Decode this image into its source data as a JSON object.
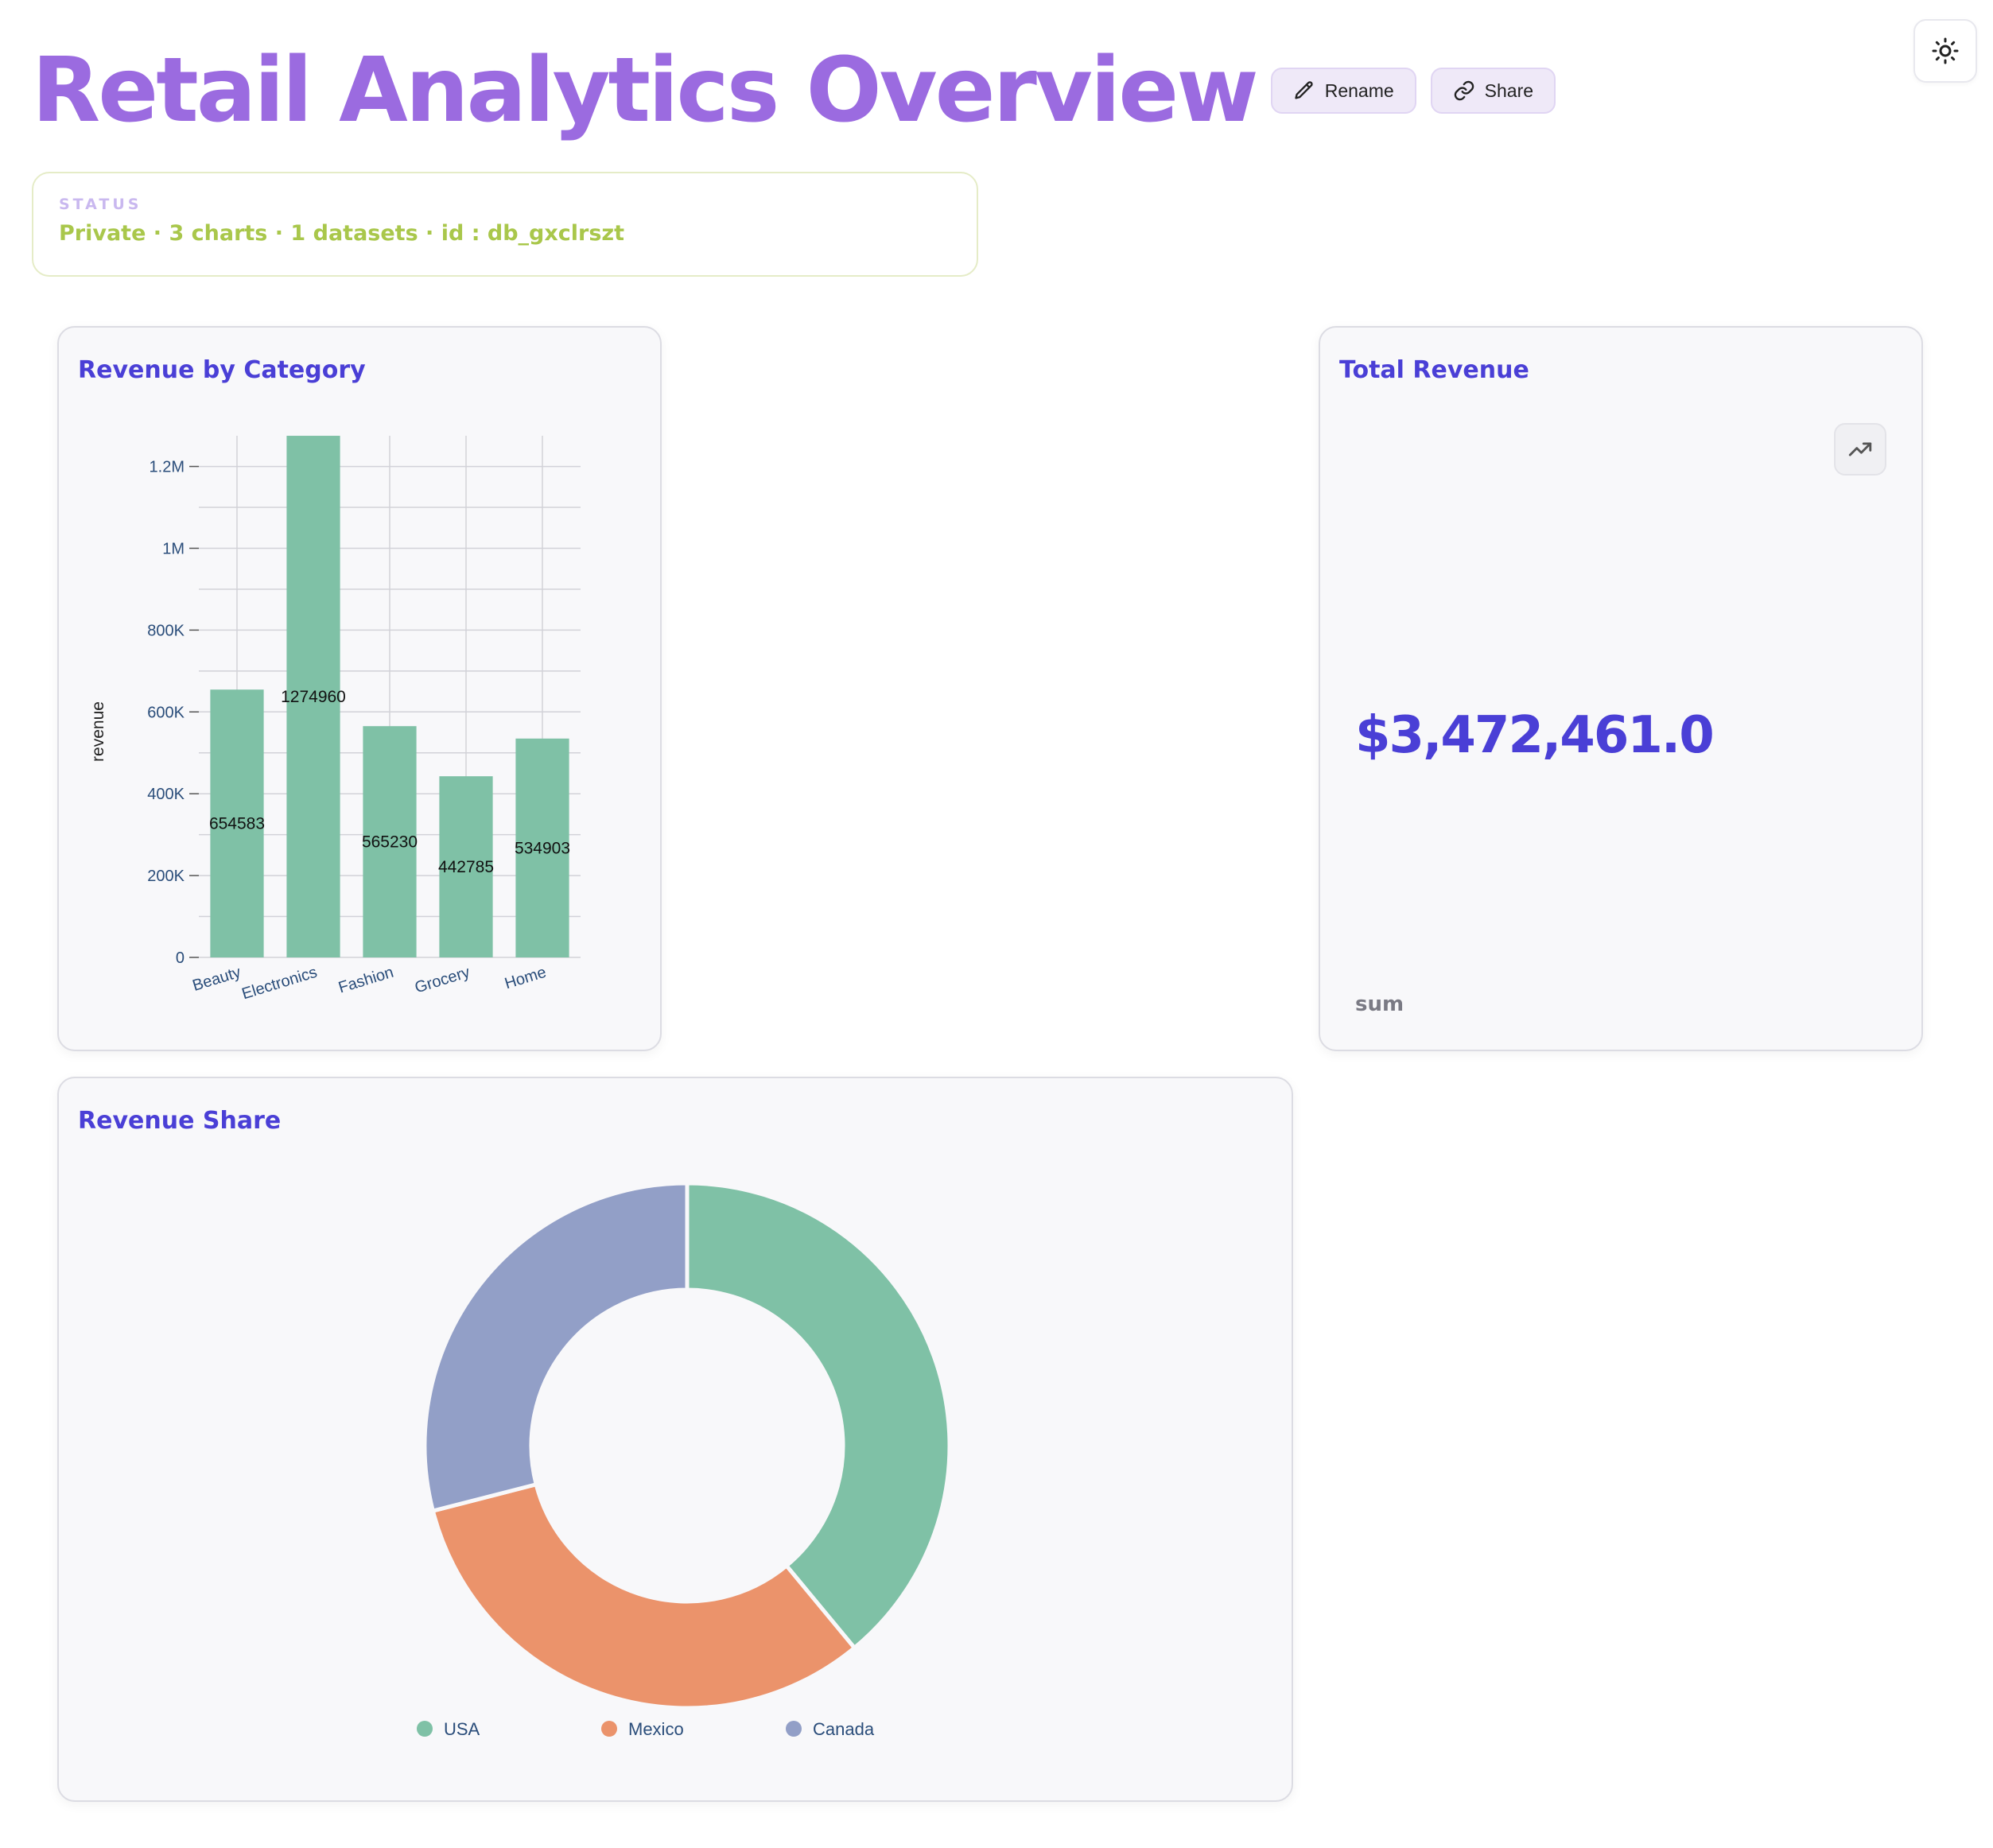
{
  "header": {
    "title": "Retail Analytics Overview",
    "rename_label": "Rename",
    "share_label": "Share"
  },
  "status": {
    "label": "STATUS",
    "text": "Private · 3 charts · 1 datasets · id : db_gxclrszt"
  },
  "colors": {
    "title": "#9b6be0",
    "accent": "#4a3fd6",
    "bar": "#7fc1a6",
    "status_text": "#a9c74b"
  },
  "icons": {
    "rename": "pencil-icon",
    "share": "link-icon",
    "theme": "sun-icon",
    "trend": "trending-up-icon"
  },
  "cards": {
    "bar": {
      "title": "Revenue by Category"
    },
    "kpi": {
      "title": "Total Revenue",
      "value": "$3,472,461.0",
      "aggregation": "sum"
    },
    "pie": {
      "title": "Revenue Share"
    }
  },
  "chart_data": [
    {
      "type": "bar",
      "title": "Revenue by Category",
      "categories": [
        "Beauty",
        "Electronics",
        "Fashion",
        "Grocery",
        "Home"
      ],
      "values": [
        654583,
        1274960,
        565230,
        442785,
        534903
      ],
      "ylabel": "revenue",
      "xlabel": "",
      "ylim": [
        0,
        1275000
      ],
      "yticks": [
        0,
        200000,
        400000,
        600000,
        800000,
        1000000,
        1200000
      ],
      "ytick_labels": [
        "0",
        "200K",
        "400K",
        "600K",
        "800K",
        "1M",
        "1.2M"
      ],
      "data_labels": [
        "654583",
        "1274960",
        "565230",
        "442785",
        "534903"
      ],
      "grid": true,
      "color": "#7fc1a6"
    },
    {
      "type": "pie",
      "title": "Revenue Share",
      "donut": true,
      "labels": [
        "USA",
        "Mexico",
        "Canada"
      ],
      "values": [
        39,
        32,
        29
      ],
      "colors": [
        "#7fc1a6",
        "#eb936b",
        "#929fc7"
      ],
      "legend": "bottom"
    }
  ]
}
